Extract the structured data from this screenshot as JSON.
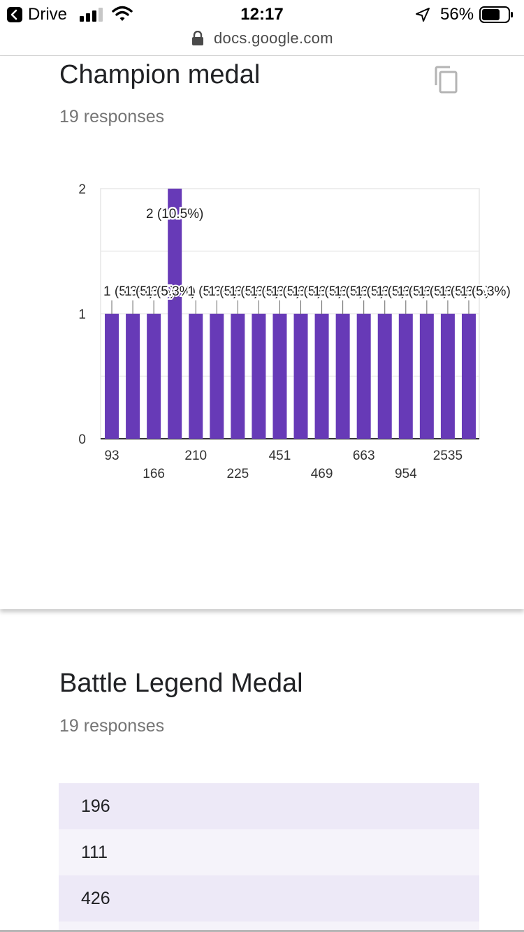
{
  "status_bar": {
    "back_app": "Drive",
    "time": "12:17",
    "battery": "56%"
  },
  "url_bar": {
    "url": "docs.google.com"
  },
  "question1": {
    "title": "Champion medal",
    "responses": "19 responses",
    "icon": "copy-icon"
  },
  "chart_data": {
    "type": "bar",
    "categories": [
      "93",
      "",
      "",
      "166",
      "210",
      "",
      "225",
      "",
      "451",
      "",
      "469",
      "",
      "663",
      "",
      "954",
      "",
      "2535",
      ""
    ],
    "visible_tick_labels": [
      "93",
      "166",
      "210",
      "225",
      "451",
      "469",
      "663",
      "954",
      "2535"
    ],
    "values": [
      1,
      1,
      1,
      2,
      1,
      1,
      1,
      1,
      1,
      1,
      1,
      1,
      1,
      1,
      1,
      1,
      1,
      1
    ],
    "data_labels": [
      "1 (5.3%)",
      "1 (5.3%)",
      "1 (5.3%)",
      "2 (10.5%)",
      "1 (5.3%)",
      "1 (5.3%)",
      "1 (5.3%)",
      "1 (5.3%)",
      "1 (5.3%)",
      "1 (5.3%)",
      "1 (5.3%)",
      "1 (5.3%)",
      "1 (5.3%)",
      "1 (5.3%)",
      "1 (5.3%)",
      "1 (5.3%)",
      "1 (5.3%)",
      "1 (5.3%)"
    ],
    "yticks": [
      "0",
      "1",
      "2"
    ],
    "ylim": [
      0,
      2
    ],
    "bar_color": "#673ab7",
    "grid": true
  },
  "question2": {
    "title": "Battle Legend Medal",
    "responses": "19 responses",
    "answers": [
      "196",
      "111",
      "426"
    ]
  },
  "colors": {
    "accent": "#673ab7",
    "row_odd": "#ede9f7",
    "row_even": "#f5f3fa"
  }
}
